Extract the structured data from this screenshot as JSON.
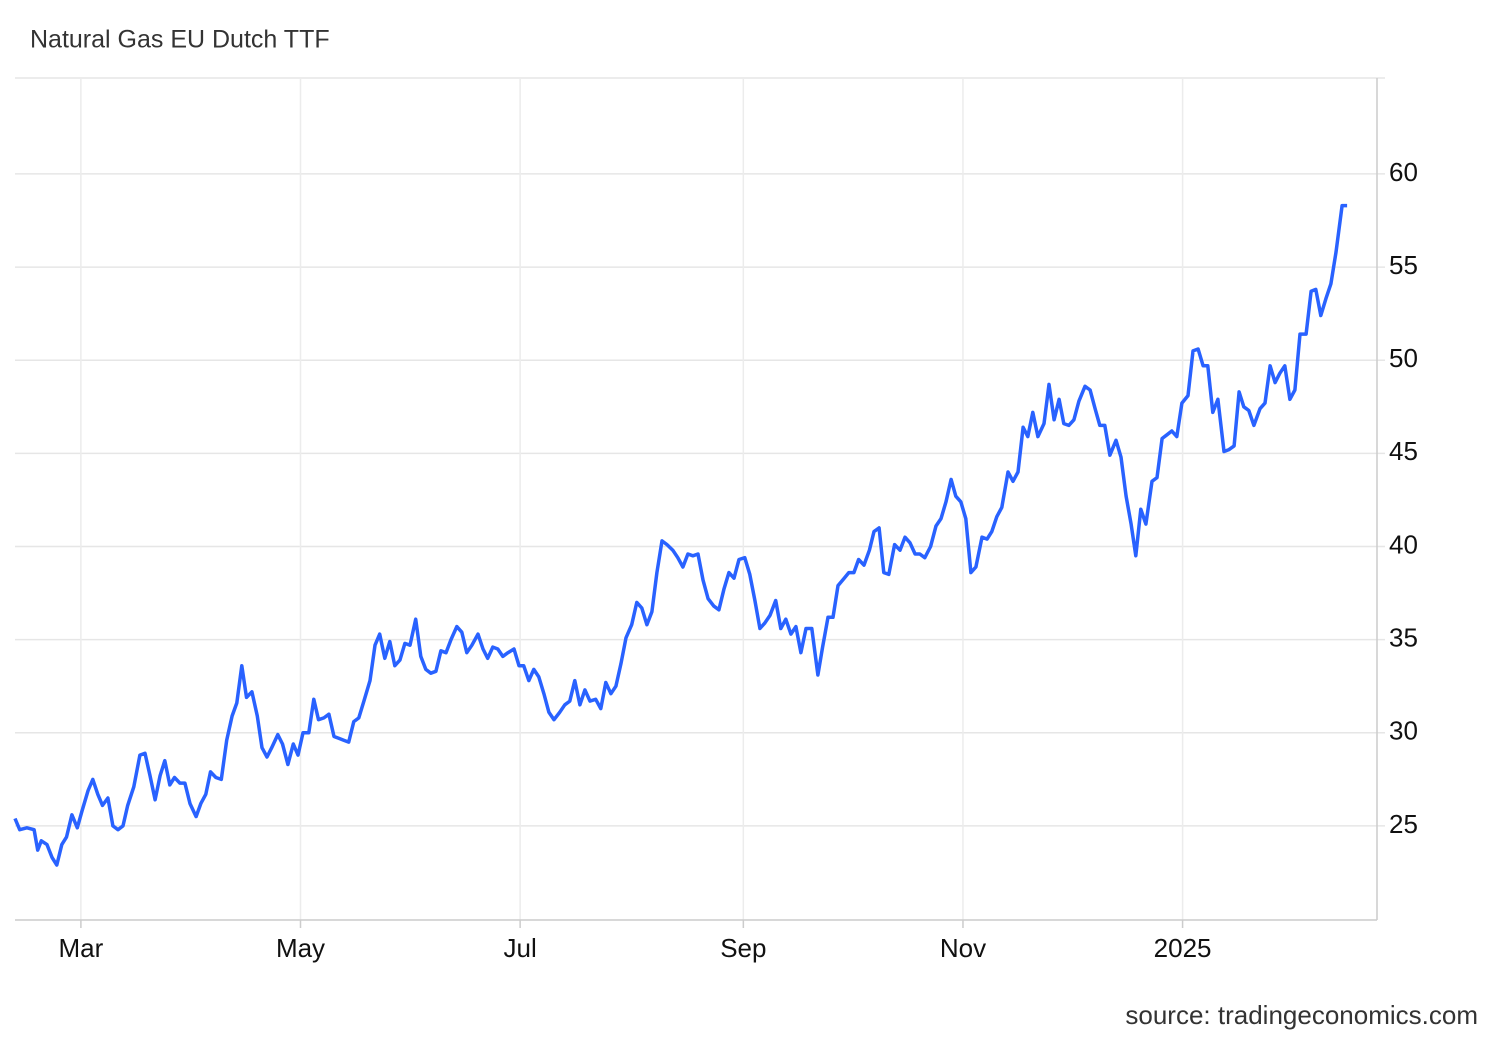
{
  "chart_data": {
    "type": "line",
    "title": "Natural Gas EU Dutch TTF",
    "source": "source: tradingeconomics.com",
    "color": "#2962ff",
    "grid": true,
    "xlim": [
      -18.3,
      360
    ],
    "ylim": [
      19.95,
      65.15
    ],
    "xticks": [
      {
        "value": 0,
        "label": "Mar"
      },
      {
        "value": 61,
        "label": "May"
      },
      {
        "value": 122,
        "label": "Jul"
      },
      {
        "value": 184,
        "label": "Sep"
      },
      {
        "value": 245,
        "label": "Nov"
      },
      {
        "value": 306,
        "label": "2025"
      }
    ],
    "yticks": [
      25,
      30,
      35,
      40,
      45,
      50,
      55,
      60
    ],
    "x": [
      -18.3,
      -17,
      -15,
      -13,
      -12,
      -11,
      -9.4,
      -8,
      -6.7,
      -5.3,
      -4,
      -2.5,
      -1,
      0.3,
      2,
      3.3,
      4.7,
      6,
      7.5,
      8.9,
      10.3,
      11.7,
      13,
      14.7,
      16.4,
      17.8,
      19.2,
      20.6,
      22,
      23.3,
      24.7,
      26,
      27.5,
      28.9,
      30.3,
      32,
      33.3,
      34.7,
      36,
      37.5,
      39,
      40.5,
      42,
      43.3,
      44.7,
      46,
      47.5,
      49,
      50.3,
      51.7,
      53,
      54.7,
      56,
      57.5,
      59,
      60.3,
      61.7,
      63.3,
      64.7,
      66,
      67.5,
      68.9,
      70.3,
      71.7,
      73,
      74.4,
      75.8,
      77.2,
      78.6,
      80.3,
      81.7,
      83,
      84.4,
      85.8,
      87.2,
      88.6,
      90,
      91.4,
      93,
      94.4,
      95.8,
      97.2,
      98.6,
      100,
      101.4,
      102.8,
      104.4,
      105.8,
      107.2,
      108.6,
      110.3,
      111.7,
      113,
      114.4,
      115.8,
      117.2,
      118.6,
      120.3,
      121.7,
      123,
      124.4,
      125.8,
      127.2,
      128.6,
      130,
      131.4,
      133,
      134.4,
      135.8,
      137.2,
      138.6,
      140,
      141.4,
      143,
      144.4,
      145.8,
      147.2,
      148.6,
      150,
      151.4,
      153,
      154.4,
      155.8,
      157.2,
      158.6,
      160,
      161.4,
      162.8,
      164.4,
      165.8,
      167.2,
      168.6,
      170,
      171.4,
      172.8,
      174.2,
      175.8,
      177.2,
      178.6,
      180,
      181.4,
      182.8,
      184.4,
      185.8,
      187.2,
      188.6,
      190,
      191.4,
      193,
      194.4,
      195.8,
      197.2,
      198.6,
      200,
      201.4,
      203,
      204.7,
      206,
      207.5,
      208.9,
      210.3,
      212,
      213.3,
      214.7,
      216,
      217.5,
      219,
      220.3,
      221.7,
      223,
      224.4,
      226,
      227.5,
      228.9,
      230.3,
      231.7,
      233,
      234.4,
      236,
      237.5,
      238.9,
      240.3,
      241.7,
      243,
      244.4,
      245.8,
      247.2,
      248.6,
      250.3,
      251.7,
      253,
      254.4,
      255.8,
      257.5,
      258.9,
      260.3,
      261.7,
      263,
      264.4,
      265.8,
      267.5,
      268.9,
      270.3,
      271.7,
      273,
      274.4,
      275.8,
      277.2,
      278.9,
      280.3,
      281.7,
      283,
      284.4,
      285.8,
      287.5,
      288.9,
      290.3,
      291.7,
      293,
      294.4,
      295.8,
      297.5,
      298.9,
      300.3,
      301.7,
      303,
      304.4,
      305.8,
      307.5,
      308.9,
      310.3,
      311.7,
      313,
      314.4,
      315.8,
      317.5,
      318.9,
      320.3,
      321.7,
      323,
      324.4,
      325.8,
      327.5,
      328.9,
      330.3,
      331.7,
      333,
      334.4,
      335.8,
      337.2,
      338.6,
      340.3,
      341.7,
      343,
      344.4,
      345.8,
      347.2,
      348.6,
      350.3,
      351.7
    ],
    "values": [
      25.4,
      24.8,
      24.9,
      24.8,
      23.7,
      24.2,
      24.0,
      23.3,
      22.9,
      24.0,
      24.4,
      25.6,
      24.9,
      25.8,
      26.9,
      27.5,
      26.7,
      26.1,
      26.5,
      25.0,
      24.8,
      25.0,
      26.1,
      27.1,
      28.8,
      28.9,
      27.7,
      26.4,
      27.7,
      28.5,
      27.2,
      27.6,
      27.3,
      27.3,
      26.2,
      25.5,
      26.2,
      26.7,
      27.9,
      27.6,
      27.5,
      29.6,
      30.9,
      31.6,
      33.6,
      31.9,
      32.2,
      30.9,
      29.2,
      28.7,
      29.2,
      29.9,
      29.4,
      28.3,
      29.4,
      28.8,
      30.0,
      30.0,
      31.8,
      30.7,
      30.8,
      31.0,
      29.8,
      29.7,
      29.6,
      29.5,
      30.6,
      30.8,
      31.7,
      32.8,
      34.7,
      35.3,
      34.0,
      34.9,
      33.6,
      33.9,
      34.8,
      34.7,
      36.1,
      34.1,
      33.4,
      33.2,
      33.3,
      34.4,
      34.3,
      35.0,
      35.7,
      35.4,
      34.3,
      34.7,
      35.3,
      34.5,
      34.0,
      34.6,
      34.5,
      34.1,
      34.3,
      34.5,
      33.6,
      33.6,
      32.8,
      33.4,
      33.0,
      32.1,
      31.1,
      30.7,
      31.1,
      31.5,
      31.7,
      32.8,
      31.5,
      32.3,
      31.7,
      31.8,
      31.3,
      32.7,
      32.1,
      32.5,
      33.7,
      35.1,
      35.8,
      37.0,
      36.7,
      35.8,
      36.5,
      38.6,
      40.3,
      40.1,
      39.8,
      39.4,
      38.9,
      39.6,
      39.5,
      39.6,
      38.2,
      37.2,
      36.8,
      36.6,
      37.7,
      38.6,
      38.3,
      39.3,
      39.4,
      38.5,
      37.1,
      35.6,
      35.9,
      36.3,
      37.1,
      35.6,
      36.1,
      35.3,
      35.7,
      34.3,
      35.6,
      35.6,
      33.1,
      34.6,
      36.2,
      36.2,
      37.9,
      38.3,
      38.6,
      38.6,
      39.3,
      39.0,
      39.8,
      40.8,
      41.0,
      38.6,
      38.5,
      40.1,
      39.8,
      40.5,
      40.2,
      39.6,
      39.6,
      39.4,
      40.0,
      41.1,
      41.5,
      42.4,
      43.6,
      42.7,
      42.4,
      41.5,
      38.6,
      38.9,
      40.5,
      40.4,
      40.8,
      41.6,
      42.1,
      44.0,
      43.5,
      44.0,
      46.4,
      45.9,
      47.2,
      45.9,
      46.6,
      48.7,
      46.8,
      47.9,
      46.6,
      46.5,
      46.8,
      47.8,
      48.6,
      48.4,
      47.4,
      46.5,
      46.5,
      44.9,
      45.7,
      44.8,
      42.7,
      41.2,
      39.5,
      42.0,
      41.2,
      43.5,
      43.7,
      45.8,
      46.0,
      46.2,
      45.9,
      47.7,
      48.1,
      50.5,
      50.6,
      49.7,
      49.7,
      47.2,
      47.9,
      45.1,
      45.2,
      45.4,
      48.3,
      47.5,
      47.3,
      46.5,
      47.4,
      47.7,
      49.7,
      48.8,
      49.3,
      49.7,
      47.9,
      48.4,
      51.4,
      51.4,
      53.7,
      53.8,
      52.4,
      53.3,
      54.1,
      55.8,
      58.3,
      58.3
    ]
  }
}
